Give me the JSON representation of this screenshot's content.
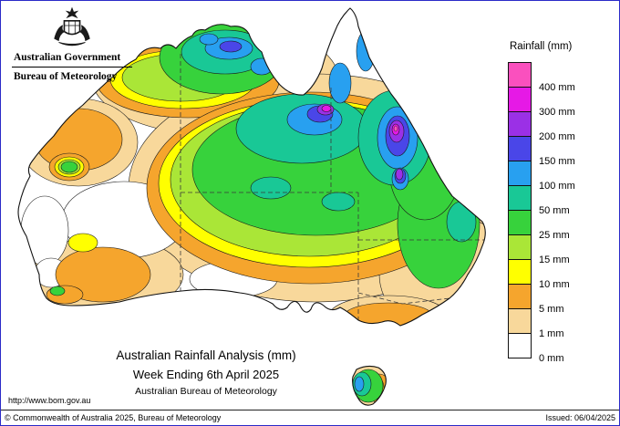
{
  "header": {
    "government": "Australian Government",
    "bureau": "Bureau of Meteorology"
  },
  "legend": {
    "title": "Rainfall (mm)",
    "entries": [
      {
        "label": "400 mm",
        "color": "#fa50be"
      },
      {
        "label": "300 mm",
        "color": "#e619e6"
      },
      {
        "label": "200 mm",
        "color": "#9b30e6"
      },
      {
        "label": "150 mm",
        "color": "#4a46e8"
      },
      {
        "label": "100 mm",
        "color": "#28a0f0"
      },
      {
        "label": "50 mm",
        "color": "#19c896"
      },
      {
        "label": "25 mm",
        "color": "#37d23c"
      },
      {
        "label": "15 mm",
        "color": "#aae637"
      },
      {
        "label": "10 mm",
        "color": "#ffff00"
      },
      {
        "label": "5 mm",
        "color": "#f5a52d"
      },
      {
        "label": "1 mm",
        "color": "#f8d89b"
      },
      {
        "label": "0 mm",
        "color": "#ffffff"
      }
    ]
  },
  "map": {
    "title": "Australian Rainfall Analysis (mm)",
    "subtitle": "Week Ending 6th April 2025",
    "attribution": "Australian Bureau of Meteorology",
    "url": "http://www.bom.gov.au"
  },
  "footer": {
    "copyright": "© Commonwealth of Australia 2025, Bureau of Meteorology",
    "issued": "Issued: 06/04/2025"
  }
}
